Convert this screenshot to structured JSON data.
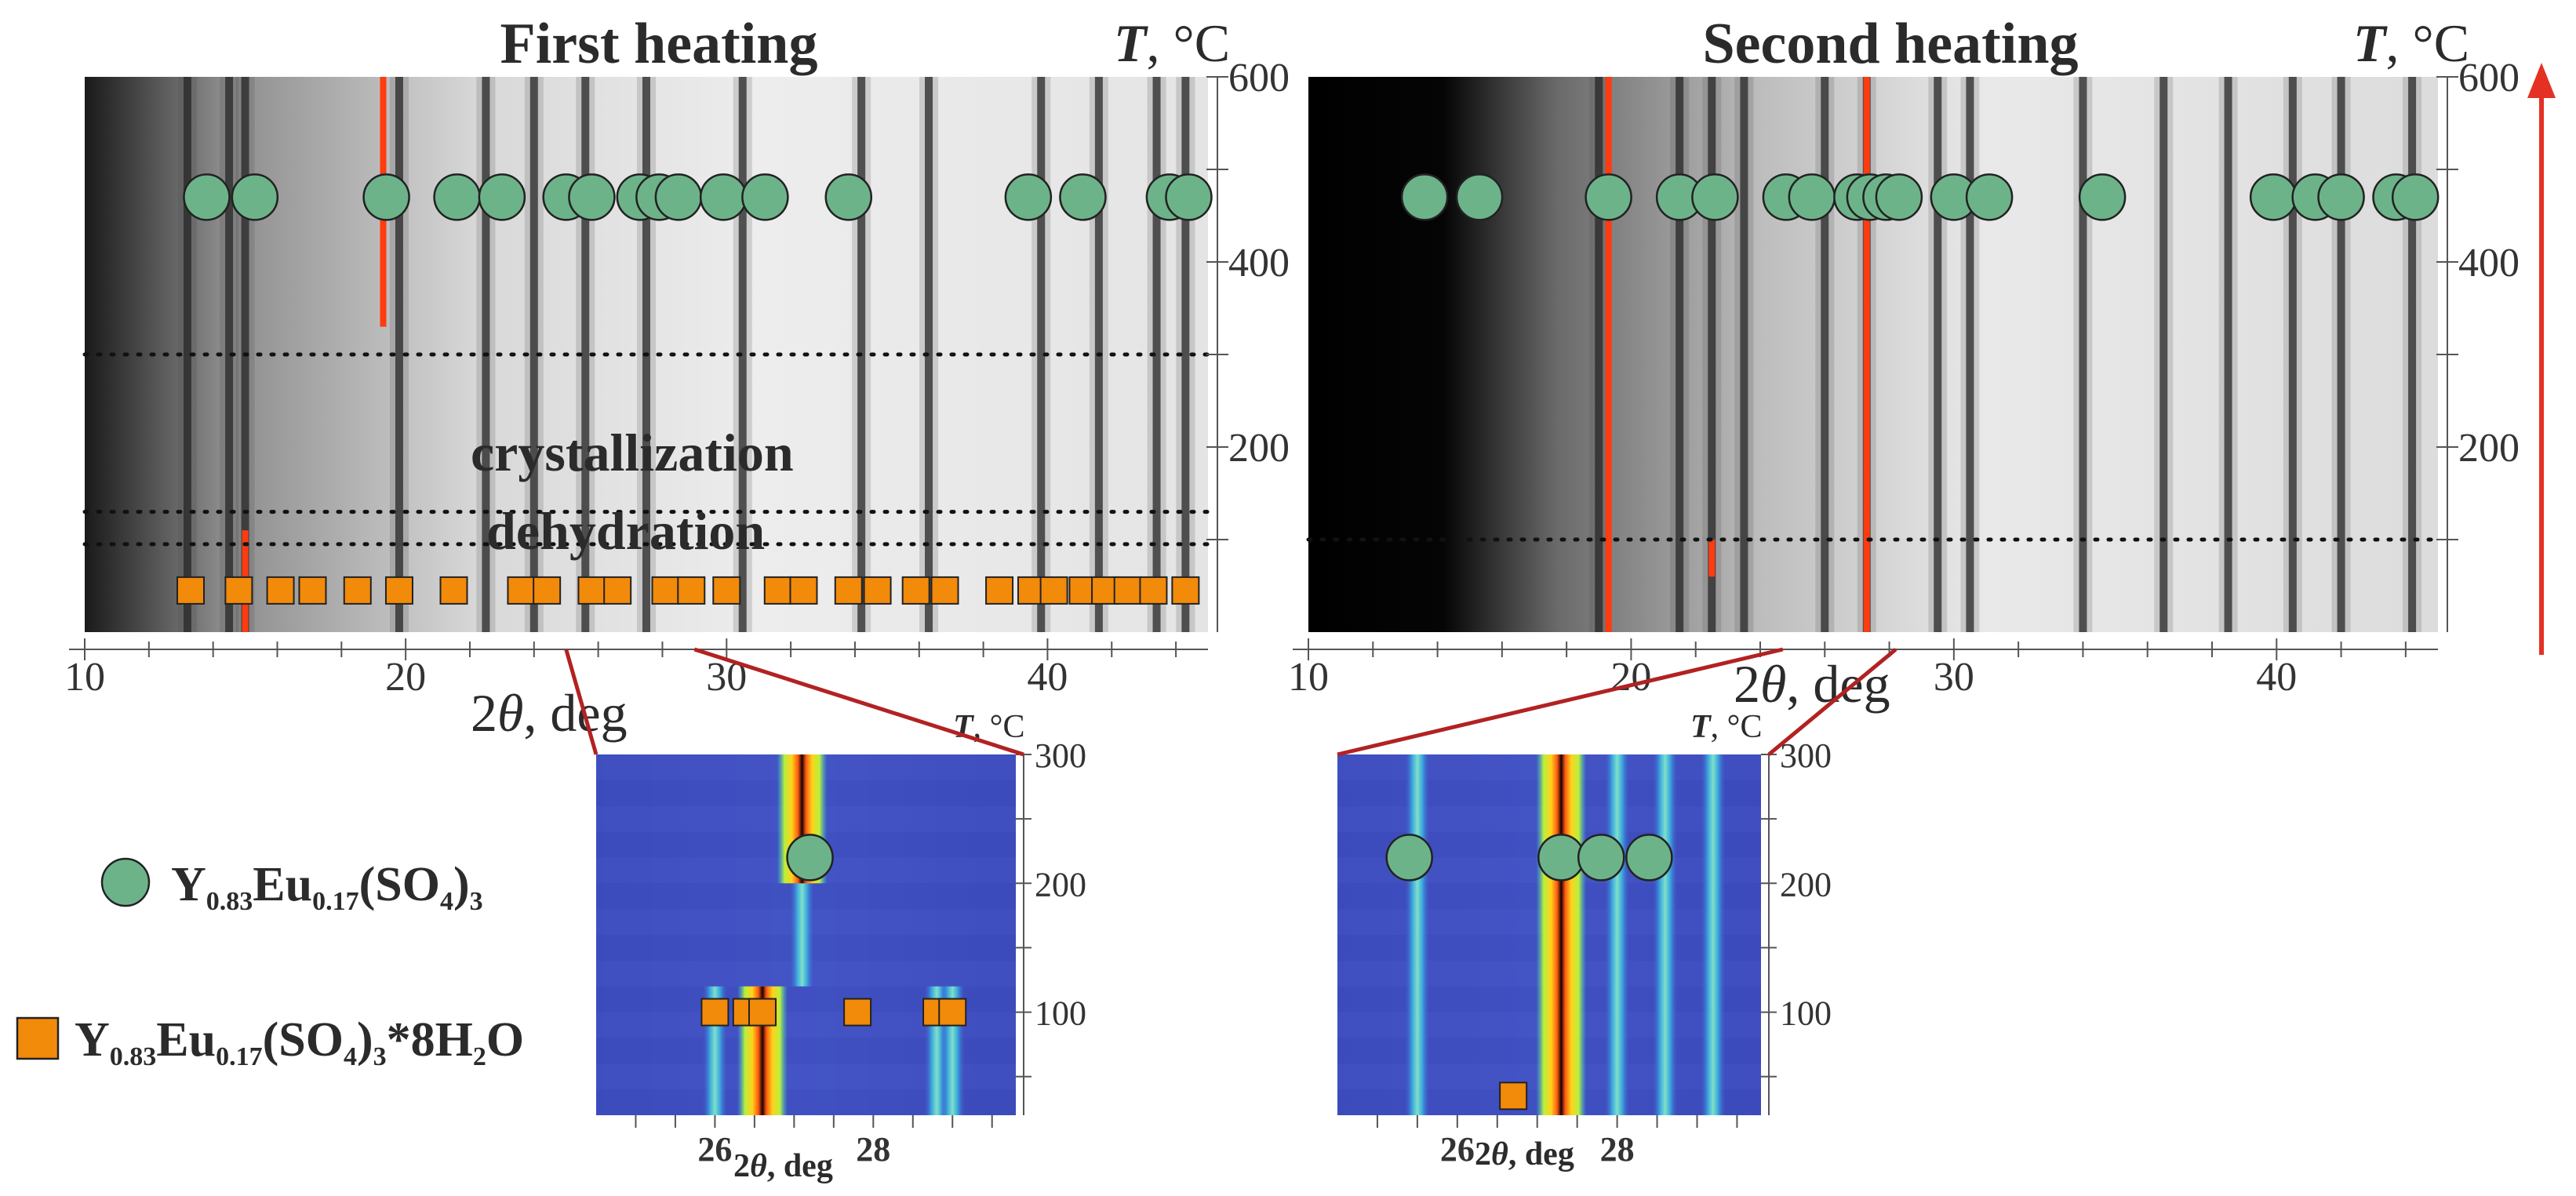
{
  "colors": {
    "phase_anhydrous": "#6db38a",
    "phase_hydrate": "#f28a0a",
    "hot_line": "#ff3b10",
    "arrow": "#e53124",
    "zoom_link": "#b22222"
  },
  "legend": {
    "anhydrous": {
      "icon": "green-circle",
      "pre": "Y",
      "s1": "0.83",
      "mid": "Eu",
      "s2": "0.17",
      "mid2": "(SO",
      "s3": "4",
      "post": ")",
      "s4": "3",
      "tail": ""
    },
    "hydrate": {
      "icon": "orange-square",
      "pre": "Y",
      "s1": "0.83",
      "mid": "Eu",
      "s2": "0.17",
      "mid2": "(SO",
      "s3": "4",
      "post": ")",
      "s4": "3",
      "tail": "*8H",
      "s5": "2",
      "tail2": "O"
    }
  },
  "chart_data": [
    {
      "id": "first-heating",
      "type": "heatmap",
      "title": "First heating",
      "xlabel_main": "2",
      "xlabel_theta": "θ",
      "xlabel_unit": ", deg",
      "ylabel_var": "T",
      "ylabel_unit": ", °C",
      "xlim": [
        10,
        45
      ],
      "ylim": [
        0,
        600
      ],
      "xticks": [
        10,
        20,
        30,
        40
      ],
      "yticks": [
        200,
        400,
        600
      ],
      "annotations": [
        "crystallization",
        "dehydration"
      ],
      "threshold_T": [
        300,
        130,
        95
      ],
      "dark_lines": [
        13.2,
        14.5,
        15.0,
        19.8,
        22.5,
        24.0,
        25.6,
        27.5,
        30.5,
        34.2,
        36.3,
        39.8,
        41.6,
        43.4,
        44.3
      ],
      "hot_lines": [
        {
          "x": 19.3,
          "T_from": 330,
          "T_to": 600
        },
        {
          "x": 15.0,
          "T_from": 0,
          "T_to": 110
        }
      ],
      "phase_anhydrous": {
        "T": 470,
        "x": [
          13.8,
          15.3,
          19.4,
          21.6,
          23.0,
          25.0,
          25.8,
          27.3,
          27.9,
          28.5,
          29.9,
          31.2,
          33.8,
          39.4,
          41.1,
          43.8,
          44.4
        ]
      },
      "phase_hydrate": {
        "T": 45,
        "x": [
          13.3,
          14.8,
          16.1,
          17.1,
          18.5,
          19.8,
          21.5,
          23.6,
          24.4,
          25.8,
          26.6,
          28.1,
          28.9,
          30.0,
          31.6,
          32.4,
          33.8,
          34.7,
          35.9,
          36.8,
          38.5,
          39.5,
          40.2,
          41.1,
          41.8,
          42.5,
          43.3,
          44.3
        ]
      },
      "zoom_x_range": [
        25.0,
        29.0
      ]
    },
    {
      "id": "second-heating",
      "type": "heatmap",
      "title": "Second heating",
      "xlabel_main": "2",
      "xlabel_theta": "θ",
      "xlabel_unit": ", deg",
      "ylabel_var": "T",
      "ylabel_unit": ", °C",
      "xlim": [
        10,
        45
      ],
      "ylim": [
        0,
        600
      ],
      "xticks": [
        10,
        20,
        30,
        40
      ],
      "yticks": [
        200,
        400,
        600
      ],
      "threshold_T": [
        100
      ],
      "dark_lines": [
        19.0,
        21.5,
        22.5,
        23.5,
        26.0,
        27.3,
        29.5,
        30.5,
        34.0,
        36.5,
        38.5,
        40.5,
        42.0,
        44.2
      ],
      "hot_lines": [
        {
          "x": 19.3,
          "T_from": 0,
          "T_to": 600
        },
        {
          "x": 27.3,
          "T_from": 0,
          "T_to": 600
        },
        {
          "x": 22.5,
          "T_from": 60,
          "T_to": 100
        }
      ],
      "phase_anhydrous": {
        "T": 470,
        "x": [
          13.6,
          15.3,
          19.3,
          21.5,
          22.6,
          24.8,
          25.6,
          27.0,
          27.4,
          27.9,
          28.3,
          30.0,
          31.1,
          34.6,
          39.9,
          41.2,
          42.0,
          43.7,
          44.3
        ]
      },
      "zoom_x_range": [
        24.7,
        28.2
      ]
    },
    {
      "id": "zoom-first",
      "type": "heatmap",
      "xlabel_main": "2",
      "xlabel_theta": "θ",
      "xlabel_unit": ", deg",
      "ylabel_var": "T",
      "ylabel_unit": ", °C",
      "xlim": [
        24.5,
        29.8
      ],
      "ylim": [
        20,
        300
      ],
      "xticks": [
        26,
        28
      ],
      "yticks": [
        100,
        200,
        300
      ],
      "cmap_lines": [
        {
          "x": 26.0,
          "T_from": 20,
          "T_to": 120
        },
        {
          "x": 26.6,
          "T_from": 20,
          "T_to": 120
        },
        {
          "x": 28.8,
          "T_from": 20,
          "T_to": 120
        },
        {
          "x": 29.0,
          "T_from": 20,
          "T_to": 120
        },
        {
          "x": 27.1,
          "T_from": 120,
          "T_to": 300
        }
      ],
      "hot_lines": [
        {
          "x": 26.6,
          "T_from": 20,
          "T_to": 120
        },
        {
          "x": 27.1,
          "T_from": 200,
          "T_to": 300
        }
      ],
      "phase_anhydrous": {
        "T": 220,
        "x": [
          27.2
        ]
      },
      "phase_hydrate": {
        "T": 100,
        "x": [
          26.0,
          26.4,
          26.6,
          27.8,
          28.8,
          29.0
        ]
      }
    },
    {
      "id": "zoom-second",
      "type": "heatmap",
      "xlabel_main": "2",
      "xlabel_theta": "θ",
      "xlabel_unit": ", deg",
      "ylabel_var": "T",
      "ylabel_unit": ", °C",
      "xlim": [
        24.5,
        29.8
      ],
      "ylim": [
        20,
        300
      ],
      "xticks": [
        26,
        28
      ],
      "yticks": [
        100,
        200,
        300
      ],
      "cmap_lines": [
        {
          "x": 25.5,
          "T_from": 20,
          "T_to": 300
        },
        {
          "x": 28.0,
          "T_from": 20,
          "T_to": 300
        },
        {
          "x": 28.6,
          "T_from": 20,
          "T_to": 300
        },
        {
          "x": 29.2,
          "T_from": 20,
          "T_to": 300
        }
      ],
      "hot_lines": [
        {
          "x": 27.3,
          "T_from": 20,
          "T_to": 300
        }
      ],
      "phase_anhydrous": {
        "T": 220,
        "x": [
          25.4,
          27.3,
          27.8,
          28.4
        ]
      },
      "phase_hydrate": {
        "T": 35,
        "x": [
          26.7
        ]
      }
    }
  ]
}
